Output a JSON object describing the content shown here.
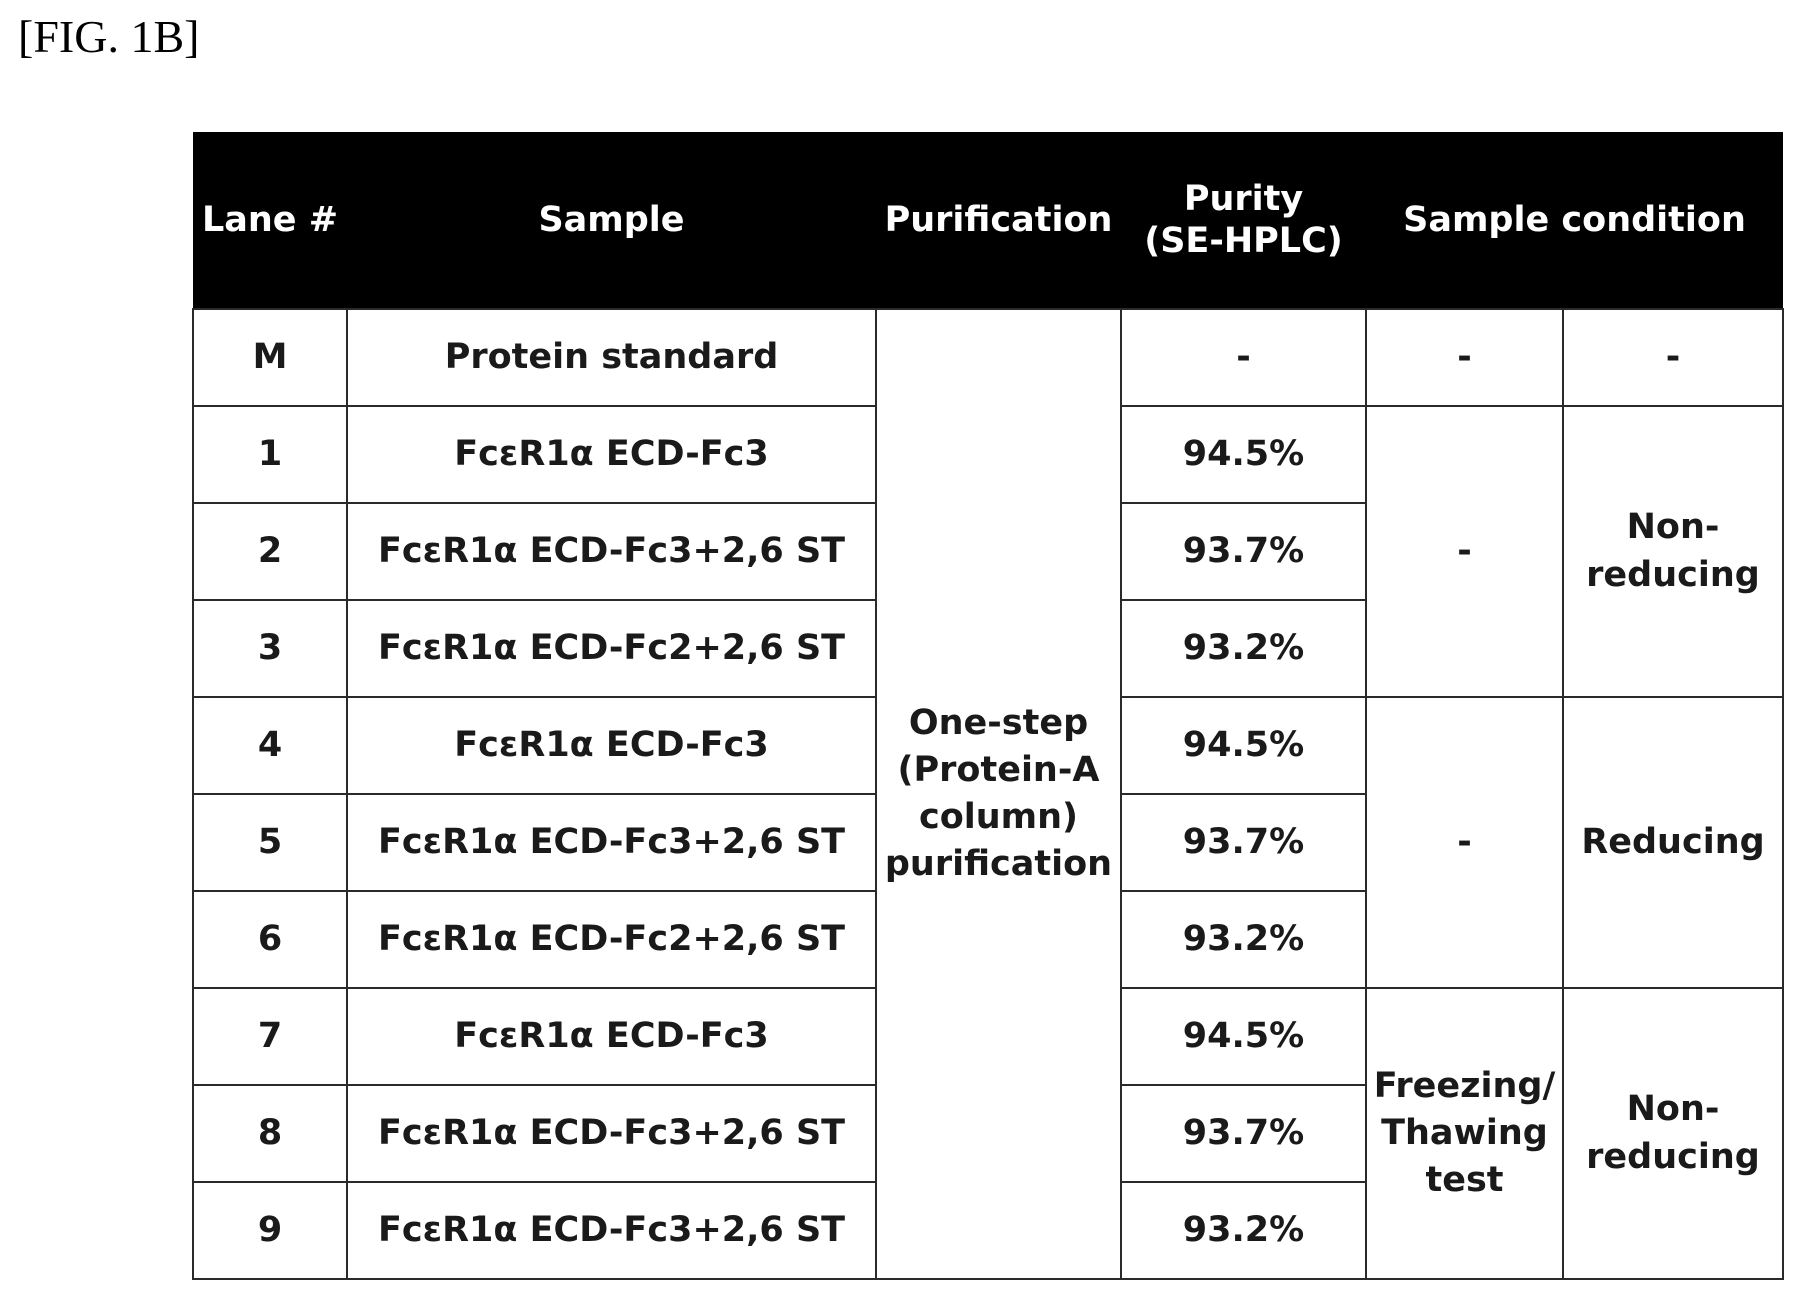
{
  "figure_label": "[FIG. 1B]",
  "header": {
    "lane": "Lane #",
    "sample": "Sample",
    "purification": "Purification",
    "purity_line1": "Purity",
    "purity_line2": "(SE-HPLC)",
    "sample_condition": "Sample condition"
  },
  "purification_text": {
    "line1": "One-step",
    "line2": "(Protein-A",
    "line3": "column)",
    "line4": "purification"
  },
  "rows": [
    {
      "lane": "M",
      "sample": "Protein standard",
      "purity": "-"
    },
    {
      "lane": "1",
      "sample": "FcεR1α ECD-Fc3",
      "purity": "94.5%"
    },
    {
      "lane": "2",
      "sample": "FcεR1α ECD-Fc3+2,6 ST",
      "purity": "93.7%"
    },
    {
      "lane": "3",
      "sample": "FcεR1α ECD-Fc2+2,6 ST",
      "purity": "93.2%"
    },
    {
      "lane": "4",
      "sample": "FcεR1α ECD-Fc3",
      "purity": "94.5%"
    },
    {
      "lane": "5",
      "sample": "FcεR1α ECD-Fc3+2,6 ST",
      "purity": "93.7%"
    },
    {
      "lane": "6",
      "sample": "FcεR1α ECD-Fc2+2,6 ST",
      "purity": "93.2%"
    },
    {
      "lane": "7",
      "sample": "FcεR1α ECD-Fc3",
      "purity": "94.5%"
    },
    {
      "lane": "8",
      "sample": "FcεR1α ECD-Fc3+2,6 ST",
      "purity": "93.7%"
    },
    {
      "lane": "9",
      "sample": "FcεR1α ECD-Fc3+2,6 ST",
      "purity": "93.2%"
    }
  ],
  "conditions": {
    "m_test": "-",
    "m_state": "-",
    "group1_test": "-",
    "group1_state_line1": "Non-",
    "group1_state_line2": "reducing",
    "group2_test": "-",
    "group2_state": "Reducing",
    "group3_test_line1": "Freezing/",
    "group3_test_line2": "Thawing",
    "group3_test_line3": "test",
    "group3_state_line1": "Non-",
    "group3_state_line2": "reducing"
  }
}
